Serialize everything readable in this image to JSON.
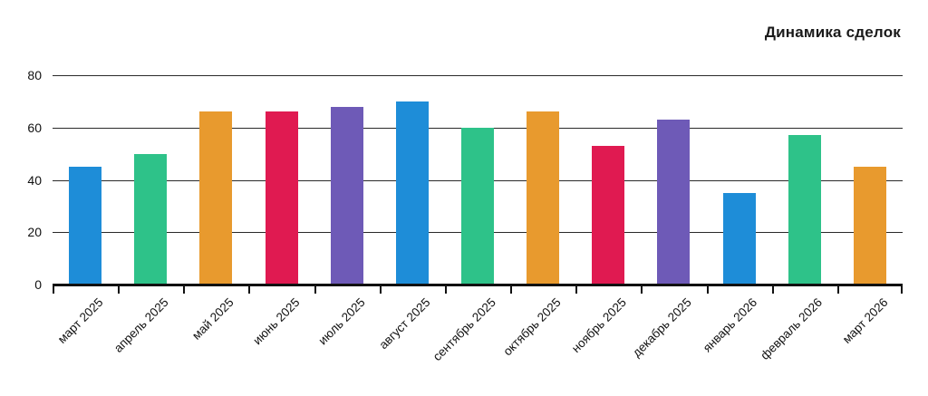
{
  "chart_data": {
    "type": "bar",
    "title": "Динамика сделок",
    "categories": [
      "март 2025",
      "апрель 2025",
      "май 2025",
      "июнь 2025",
      "июль 2025",
      "август 2025",
      "сентябрь 2025",
      "октябрь 2025",
      "ноябрь 2025",
      "декабрь 2025",
      "январь 2026",
      "февраль 2026",
      "март 2026"
    ],
    "values": [
      45,
      50,
      66,
      66,
      68,
      70,
      60,
      66,
      53,
      63,
      35,
      57,
      45
    ],
    "palette_cycle": [
      "#1E8DD8",
      "#2EC289",
      "#E89A2E",
      "#E01A51",
      "#6E5AB7"
    ],
    "xlabel": "",
    "ylabel": "",
    "ylim": [
      0,
      80
    ],
    "yticks": [
      0,
      20,
      40,
      60,
      80
    ],
    "grid": "horizontal",
    "legend": "none",
    "title_position": "top-right",
    "x_tick_rotation_deg": -45,
    "axis_color": "#111111",
    "text_color": "#111111",
    "background": "#ffffff"
  }
}
